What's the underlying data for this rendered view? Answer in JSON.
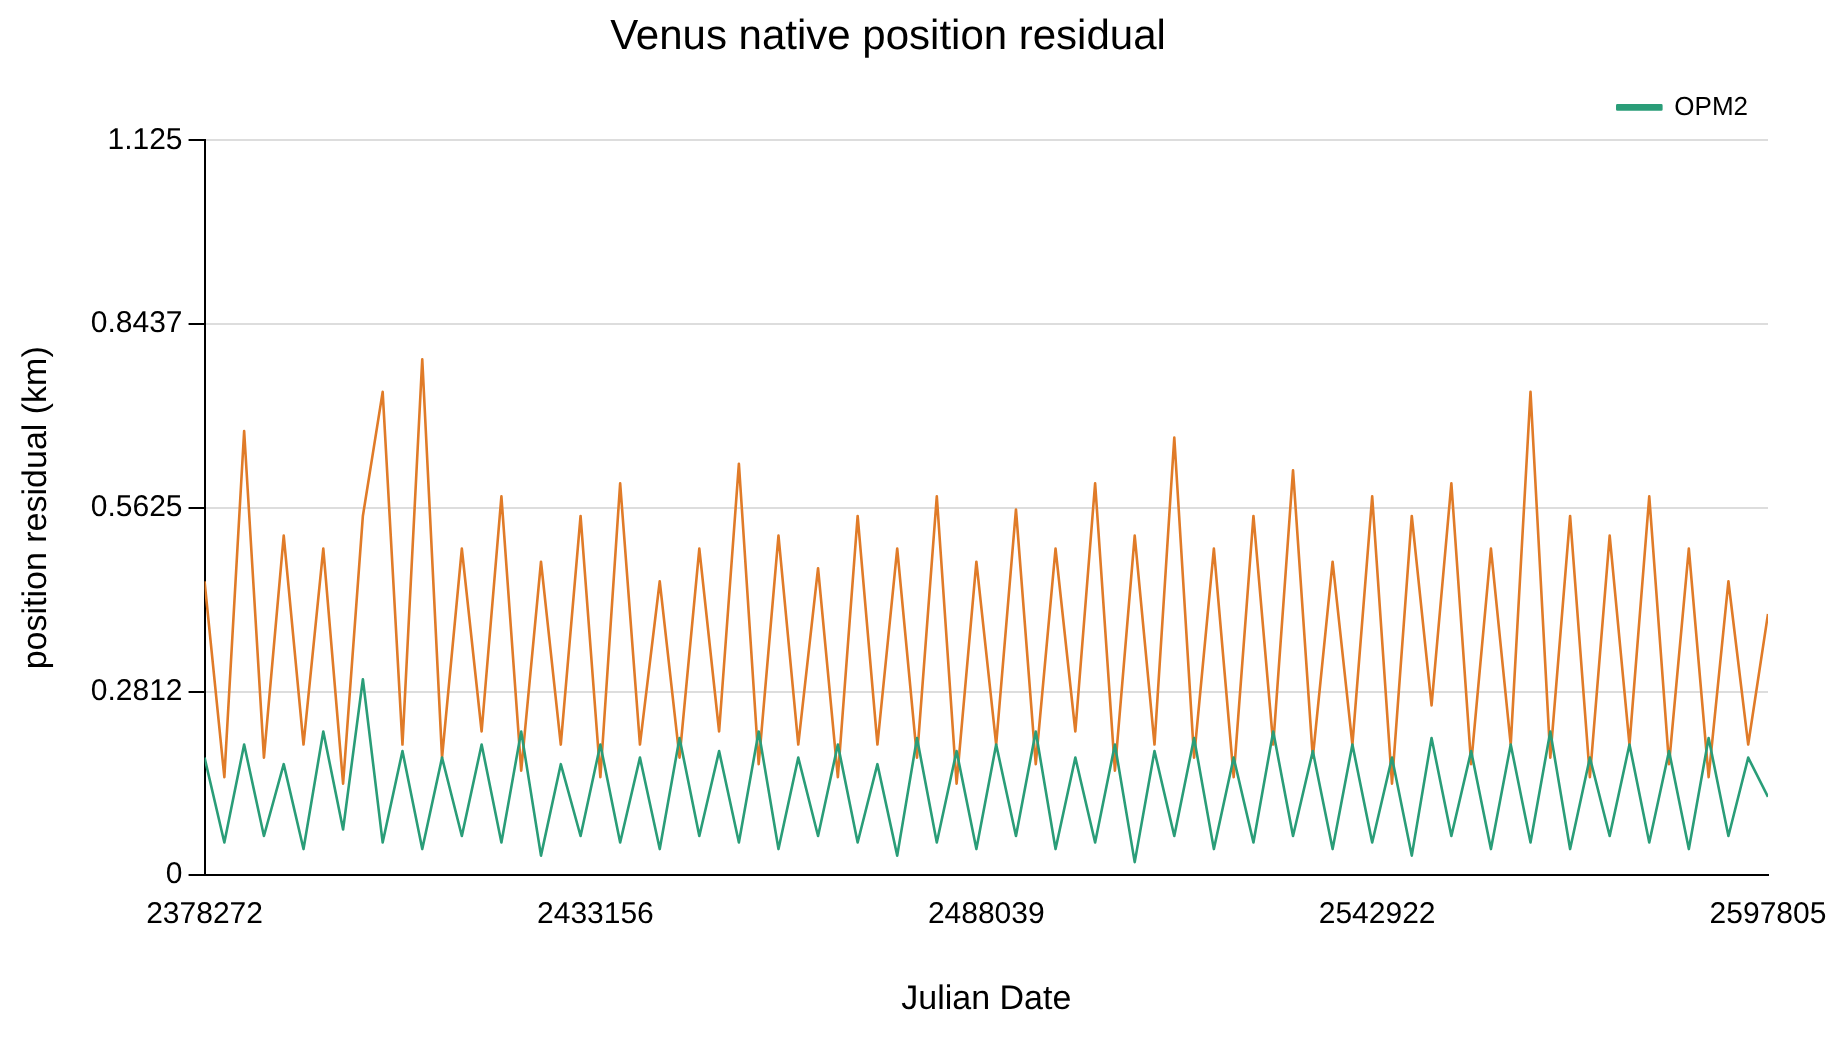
{
  "chart_data": {
    "type": "line",
    "title": "Venus native position residual",
    "xlabel": "Julian Date",
    "ylabel": "position residual (km)",
    "x": [
      2378272,
      2381051,
      2383830,
      2386609,
      2389388,
      2392167,
      2394945,
      2397724,
      2400503,
      2403282,
      2406061,
      2408840,
      2411619,
      2414398,
      2417177,
      2419955,
      2422734,
      2425513,
      2428292,
      2431071,
      2433850,
      2436629,
      2439408,
      2442187,
      2444966,
      2447744,
      2450523,
      2453302,
      2456081,
      2458860,
      2461639,
      2464418,
      2467197,
      2469976,
      2472755,
      2475533,
      2478312,
      2481091,
      2483870,
      2486649,
      2489428,
      2492207,
      2494986,
      2497765,
      2500544,
      2503322,
      2506101,
      2508880,
      2511659,
      2514438,
      2517217,
      2519996,
      2522775,
      2525554,
      2528333,
      2531111,
      2533890,
      2536669,
      2539448,
      2542227,
      2545006,
      2547785,
      2550564,
      2553343,
      2556121,
      2558900,
      2561679,
      2564458,
      2567237,
      2570016,
      2572795,
      2575574,
      2578353,
      2581132,
      2583910,
      2586689,
      2589468,
      2592247,
      2595026,
      2597805
    ],
    "series": [
      {
        "name": "OPM2",
        "color": "#2a9d78",
        "values": [
          0.18,
          0.05,
          0.2,
          0.06,
          0.17,
          0.04,
          0.22,
          0.07,
          0.3,
          0.05,
          0.19,
          0.04,
          0.18,
          0.06,
          0.2,
          0.05,
          0.22,
          0.03,
          0.17,
          0.06,
          0.2,
          0.05,
          0.18,
          0.04,
          0.21,
          0.06,
          0.19,
          0.05,
          0.22,
          0.04,
          0.18,
          0.06,
          0.2,
          0.05,
          0.17,
          0.03,
          0.21,
          0.05,
          0.19,
          0.04,
          0.2,
          0.06,
          0.22,
          0.04,
          0.18,
          0.05,
          0.2,
          0.02,
          0.19,
          0.06,
          0.21,
          0.04,
          0.18,
          0.05,
          0.22,
          0.06,
          0.19,
          0.04,
          0.2,
          0.05,
          0.18,
          0.03,
          0.21,
          0.06,
          0.19,
          0.04,
          0.2,
          0.05,
          0.22,
          0.04,
          0.18,
          0.06,
          0.2,
          0.05,
          0.19,
          0.04,
          0.21,
          0.06,
          0.18,
          0.12
        ]
      },
      {
        "color": "#e07b28",
        "values": [
          0.45,
          0.15,
          0.68,
          0.18,
          0.52,
          0.2,
          0.5,
          0.14,
          0.55,
          0.74,
          0.2,
          0.79,
          0.18,
          0.5,
          0.22,
          0.58,
          0.16,
          0.48,
          0.2,
          0.55,
          0.15,
          0.6,
          0.2,
          0.45,
          0.18,
          0.5,
          0.22,
          0.63,
          0.17,
          0.52,
          0.2,
          0.47,
          0.15,
          0.55,
          0.2,
          0.5,
          0.18,
          0.58,
          0.14,
          0.48,
          0.2,
          0.56,
          0.17,
          0.5,
          0.22,
          0.6,
          0.16,
          0.52,
          0.2,
          0.67,
          0.18,
          0.5,
          0.15,
          0.55,
          0.2,
          0.62,
          0.18,
          0.48,
          0.2,
          0.58,
          0.14,
          0.55,
          0.26,
          0.6,
          0.17,
          0.5,
          0.2,
          0.74,
          0.18,
          0.55,
          0.15,
          0.52,
          0.2,
          0.58,
          0.17,
          0.5,
          0.15,
          0.45,
          0.2,
          0.4
        ]
      }
    ],
    "xlim": [
      2378272,
      2597805
    ],
    "xticks": [
      2378272,
      2433156,
      2488039,
      2542922,
      2597805
    ],
    "ylim": [
      0,
      1.125
    ],
    "yticks": [
      0,
      0.2812,
      0.5625,
      0.8437,
      1.125
    ],
    "grid": "y",
    "legend": "top right",
    "marker": "none",
    "line_style": "solid"
  }
}
